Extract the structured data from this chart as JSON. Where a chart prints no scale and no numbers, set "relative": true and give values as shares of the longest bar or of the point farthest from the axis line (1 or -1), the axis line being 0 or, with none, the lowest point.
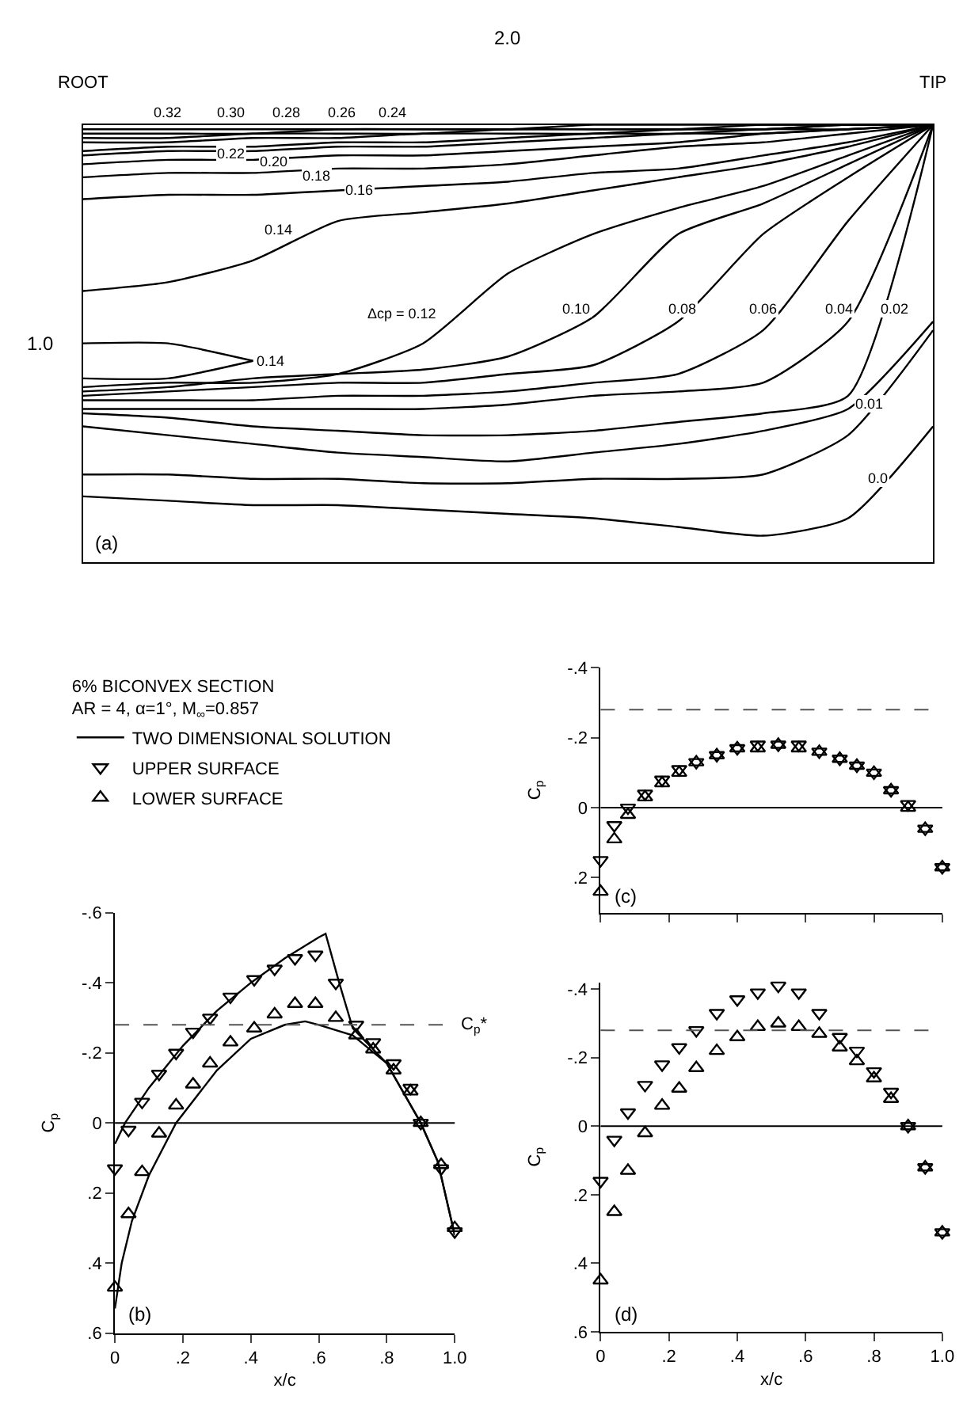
{
  "chart_data": [
    {
      "type": "line",
      "relative": true,
      "tick_labels": "x",
      "categories": [
        "ROOT",
        null,
        null,
        null,
        null,
        null,
        null,
        null,
        null,
        null,
        "TIP"
      ],
      "series": [
        {
          "color": "#000000",
          "values": [
            0.99,
            0.99,
            0.99,
            0.99,
            0.99,
            0.99,
            1.0,
            1.0,
            1.0,
            1.0,
            1.0
          ]
        },
        {
          "color": "#000000",
          "values": [
            0.98,
            0.98,
            0.98,
            0.99,
            0.99,
            0.99,
            0.99,
            0.99,
            1.0,
            1.0,
            1.0
          ]
        },
        {
          "color": "#000000",
          "values": [
            0.97,
            0.97,
            0.98,
            0.98,
            0.98,
            0.99,
            0.99,
            0.99,
            0.99,
            1.0,
            1.0
          ]
        },
        {
          "color": "#000000",
          "values": [
            0.96,
            0.96,
            0.97,
            0.97,
            0.98,
            0.98,
            0.98,
            0.99,
            0.99,
            1.0,
            1.0
          ]
        },
        {
          "color": "#000000",
          "values": [
            0.94,
            0.95,
            0.95,
            0.96,
            0.96,
            0.97,
            0.98,
            0.98,
            0.99,
            0.99,
            1.0
          ]
        },
        {
          "color": "#000000",
          "values": [
            0.93,
            0.94,
            0.94,
            0.95,
            0.95,
            0.96,
            0.97,
            0.98,
            0.98,
            0.99,
            1.0
          ]
        },
        {
          "color": "#000000",
          "values": [
            0.91,
            0.92,
            0.92,
            0.93,
            0.93,
            0.94,
            0.95,
            0.96,
            0.98,
            0.99,
            1.0
          ]
        },
        {
          "color": "#000000",
          "values": [
            0.88,
            0.89,
            0.89,
            0.9,
            0.9,
            0.91,
            0.93,
            0.95,
            0.96,
            0.98,
            1.0
          ]
        },
        {
          "color": "#000000",
          "values": [
            0.83,
            0.84,
            0.84,
            0.85,
            0.86,
            0.87,
            0.89,
            0.9,
            0.93,
            0.96,
            1.0
          ]
        },
        {
          "color": "#000000",
          "values": [
            0.62,
            0.64,
            0.69,
            0.78,
            0.8,
            0.82,
            0.85,
            0.88,
            0.91,
            0.95,
            1.0
          ]
        },
        {
          "color": "#000000",
          "values": [
            0.5,
            0.5,
            0.46,
            null,
            null,
            null,
            null,
            null,
            null,
            null,
            null
          ]
        },
        {
          "color": "#000000",
          "values": [
            0.42,
            0.42,
            0.46,
            null,
            null,
            null,
            null,
            null,
            null,
            null,
            null
          ]
        },
        {
          "color": "#000000",
          "values": [
            0.4,
            0.41,
            0.41,
            0.43,
            0.5,
            0.66,
            0.75,
            0.81,
            0.86,
            0.93,
            1.0
          ]
        },
        {
          "color": "#000000",
          "values": [
            0.39,
            0.4,
            0.42,
            0.43,
            0.44,
            0.47,
            0.56,
            0.75,
            0.82,
            0.91,
            1.0
          ]
        },
        {
          "color": "#000000",
          "values": [
            0.38,
            0.39,
            0.4,
            0.41,
            0.41,
            0.43,
            0.45,
            0.55,
            0.75,
            0.88,
            1.0
          ]
        },
        {
          "color": "#000000",
          "values": [
            0.37,
            0.37,
            0.37,
            0.38,
            0.38,
            0.39,
            0.41,
            0.43,
            0.53,
            0.78,
            1.0
          ]
        },
        {
          "color": "#000000",
          "values": [
            0.35,
            0.35,
            0.35,
            0.35,
            0.35,
            0.36,
            0.38,
            0.39,
            0.41,
            0.55,
            1.0
          ]
        },
        {
          "color": "#000000",
          "values": [
            0.34,
            0.33,
            0.31,
            0.3,
            0.29,
            0.29,
            0.3,
            0.32,
            0.34,
            0.38,
            1.0
          ]
        },
        {
          "color": "#000000",
          "values": [
            0.31,
            0.29,
            0.27,
            0.25,
            0.24,
            0.23,
            0.25,
            0.27,
            0.3,
            0.35,
            0.55
          ]
        },
        {
          "color": "#000000",
          "values": [
            0.2,
            0.2,
            0.19,
            0.19,
            0.18,
            0.18,
            0.19,
            0.19,
            0.2,
            0.29,
            0.53
          ]
        },
        {
          "color": "#000000",
          "values": [
            0.15,
            0.14,
            0.13,
            0.13,
            0.12,
            0.11,
            0.1,
            0.08,
            0.06,
            0.1,
            0.31
          ]
        }
      ],
      "annotations": [
        "2.0",
        "1.0",
        "(a)",
        "0.32",
        "0.30",
        "0.28",
        "0.26",
        "0.24",
        "Δcp = 0.12",
        "0.22",
        "0.20",
        "0.18",
        "0.16",
        "0.14",
        "0.14",
        "0.10",
        "0.08",
        "0.06",
        "0.04",
        "0.02",
        "0.01",
        "0.0"
      ]
    },
    {
      "type": "scatter",
      "xlim": [
        0,
        1.0
      ],
      "ylim": [
        0.6,
        -0.6
      ],
      "xticks": [
        0,
        {
          "value": 0.2,
          "label": ".2"
        },
        {
          "value": 0.4,
          "label": ".4"
        },
        {
          "value": 0.6,
          "label": ".6"
        },
        {
          "value": 0.8,
          "label": ".8"
        },
        {
          "value": 1.0,
          "label": "1.0"
        }
      ],
      "yticks": [
        {
          "value": -0.6,
          "label": "-.6"
        },
        {
          "value": -0.4,
          "label": "-.4"
        },
        {
          "value": -0.2,
          "label": "-.2"
        },
        0,
        {
          "value": 0.2,
          "label": ".2"
        },
        {
          "value": 0.4,
          "label": ".4"
        },
        {
          "value": 0.6,
          "label": ".6"
        }
      ],
      "xlabel": "x/c",
      "ylabel": "C$_{p}$",
      "legend": "top",
      "legend_title": "6% BICONVEX SECTION\nAR = 4, α=1°, M$_{∞}$=0.857",
      "x": [
        0,
        0.04,
        0.08,
        0.13,
        0.18,
        0.23,
        0.28,
        0.34,
        0.41,
        0.47,
        0.53,
        0.59,
        0.65,
        0.71,
        0.76,
        0.82,
        0.87,
        0.9,
        0.96,
        1.0
      ],
      "series": [
        {
          "type": "line",
          "name": "TWO DIMENSIONAL SOLUTION",
          "color": "#000000",
          "x": [
            0,
            0.03,
            0.1,
            0.2,
            0.3,
            0.4,
            0.5,
            0.6,
            0.62,
            0.66,
            0.7,
            0.8,
            0.9,
            0.95,
            1.0
          ],
          "values": [
            0.06,
            0.0,
            -0.1,
            -0.22,
            -0.32,
            -0.4,
            -0.47,
            -0.53,
            -0.54,
            -0.4,
            -0.27,
            -0.17,
            0.0,
            0.11,
            0.32
          ]
        },
        {
          "type": "line",
          "color": "#000000",
          "x": [
            0,
            0.02,
            0.05,
            0.1,
            0.18,
            0.3,
            0.4,
            0.5,
            0.56,
            0.6,
            0.7,
            0.8,
            0.9,
            0.95,
            1.0
          ],
          "values": [
            0.53,
            0.4,
            0.28,
            0.15,
            0.0,
            -0.15,
            -0.24,
            -0.28,
            -0.29,
            -0.28,
            -0.25,
            -0.17,
            0.0,
            0.11,
            0.32
          ]
        },
        {
          "name": "UPPER SURFACE",
          "color": "#000000",
          "marker": "triangle-down",
          "values": [
            0.13,
            0.02,
            -0.06,
            -0.14,
            -0.2,
            -0.26,
            -0.3,
            -0.36,
            -0.41,
            -0.44,
            -0.47,
            -0.48,
            -0.4,
            -0.28,
            -0.23,
            -0.17,
            -0.1,
            0.0,
            0.13,
            0.31
          ]
        },
        {
          "name": "LOWER SURFACE",
          "color": "#000000",
          "marker": "triangle",
          "values": [
            0.47,
            0.26,
            0.14,
            0.03,
            -0.05,
            -0.11,
            -0.17,
            -0.23,
            -0.27,
            -0.31,
            -0.34,
            -0.34,
            -0.3,
            -0.25,
            -0.21,
            -0.15,
            -0.09,
            0.0,
            0.12,
            0.3
          ]
        }
      ],
      "ref_lines": [
        {
          "axis": "y",
          "value": -0.28,
          "label": "C$_{p}$*",
          "line_style": "dashed",
          "color": "#555555"
        },
        {
          "axis": "y",
          "value": 0,
          "label": null,
          "line_style": "solid",
          "color": "#000000"
        }
      ],
      "annotations": [
        "(b)"
      ]
    },
    {
      "type": "scatter",
      "xlim": [
        0,
        1.0
      ],
      "ylim": [
        0.3,
        -0.4
      ],
      "tick_labels": "y",
      "xticks": [
        {
          "value": 0,
          "label": null
        },
        {
          "value": 0.2,
          "label": null
        },
        {
          "value": 0.4,
          "label": null
        },
        {
          "value": 0.6,
          "label": null
        },
        {
          "value": 0.8,
          "label": null
        },
        {
          "value": 1.0,
          "label": null
        }
      ],
      "yticks": [
        {
          "value": -0.4,
          "label": "-.4"
        },
        {
          "value": -0.2,
          "label": "-.2"
        },
        0,
        {
          "value": 0.2,
          "label": ".2"
        }
      ],
      "ylabel": "C$_{p}$",
      "x": [
        0,
        0.04,
        0.08,
        0.13,
        0.18,
        0.23,
        0.28,
        0.34,
        0.4,
        0.46,
        0.52,
        0.58,
        0.64,
        0.7,
        0.75,
        0.8,
        0.85,
        0.9,
        0.95,
        1.0
      ],
      "series": [
        {
          "color": "#000000",
          "marker": "triangle-down",
          "values": [
            0.15,
            0.05,
            0.0,
            -0.04,
            -0.08,
            -0.11,
            -0.13,
            -0.15,
            -0.17,
            -0.18,
            -0.18,
            -0.18,
            -0.16,
            -0.14,
            -0.12,
            -0.1,
            -0.05,
            -0.01,
            0.06,
            0.17
          ]
        },
        {
          "color": "#000000",
          "marker": "triangle",
          "values": [
            0.24,
            0.09,
            0.02,
            -0.03,
            -0.07,
            -0.1,
            -0.13,
            -0.15,
            -0.17,
            -0.17,
            -0.18,
            -0.17,
            -0.16,
            -0.14,
            -0.12,
            -0.1,
            -0.05,
            0.0,
            0.06,
            0.17
          ]
        }
      ],
      "ref_lines": [
        {
          "axis": "y",
          "value": -0.28,
          "label": null,
          "line_style": "dashed",
          "color": "#555555"
        },
        {
          "axis": "y",
          "value": 0,
          "label": null,
          "line_style": "solid",
          "color": "#000000"
        }
      ],
      "annotations": [
        "(c)"
      ]
    },
    {
      "type": "scatter",
      "xlim": [
        0,
        1.0
      ],
      "ylim": [
        0.6,
        -0.42
      ],
      "xticks": [
        0,
        {
          "value": 0.2,
          "label": ".2"
        },
        {
          "value": 0.4,
          "label": ".4"
        },
        {
          "value": 0.6,
          "label": ".6"
        },
        {
          "value": 0.8,
          "label": ".8"
        },
        {
          "value": 1.0,
          "label": "1.0"
        }
      ],
      "yticks": [
        {
          "value": -0.4,
          "label": "-.4"
        },
        {
          "value": -0.2,
          "label": "-.2"
        },
        0,
        {
          "value": 0.2,
          "label": ".2"
        },
        {
          "value": 0.4,
          "label": ".4"
        },
        {
          "value": 0.6,
          "label": ".6"
        }
      ],
      "xlabel": "x/c",
      "ylabel": "C$_{p}$",
      "x": [
        0,
        0.04,
        0.08,
        0.13,
        0.18,
        0.23,
        0.28,
        0.34,
        0.4,
        0.46,
        0.52,
        0.58,
        0.64,
        0.7,
        0.75,
        0.8,
        0.85,
        0.9,
        0.95,
        1.0
      ],
      "series": [
        {
          "color": "#000000",
          "marker": "triangle-down",
          "values": [
            0.16,
            0.04,
            -0.04,
            -0.12,
            -0.18,
            -0.23,
            -0.28,
            -0.33,
            -0.37,
            -0.39,
            -0.41,
            -0.39,
            -0.33,
            -0.26,
            -0.22,
            -0.16,
            -0.1,
            0.0,
            0.12,
            0.31
          ]
        },
        {
          "color": "#000000",
          "marker": "triangle",
          "values": [
            0.45,
            0.25,
            0.13,
            0.02,
            -0.06,
            -0.11,
            -0.17,
            -0.22,
            -0.26,
            -0.29,
            -0.3,
            -0.29,
            -0.27,
            -0.23,
            -0.19,
            -0.14,
            -0.08,
            0.0,
            0.12,
            0.31
          ]
        }
      ],
      "ref_lines": [
        {
          "axis": "y",
          "value": -0.28,
          "label": null,
          "line_style": "dashed",
          "color": "#555555"
        },
        {
          "axis": "y",
          "value": 0,
          "label": null,
          "line_style": "solid",
          "color": "#000000"
        }
      ],
      "annotations": [
        "(d)"
      ]
    }
  ]
}
